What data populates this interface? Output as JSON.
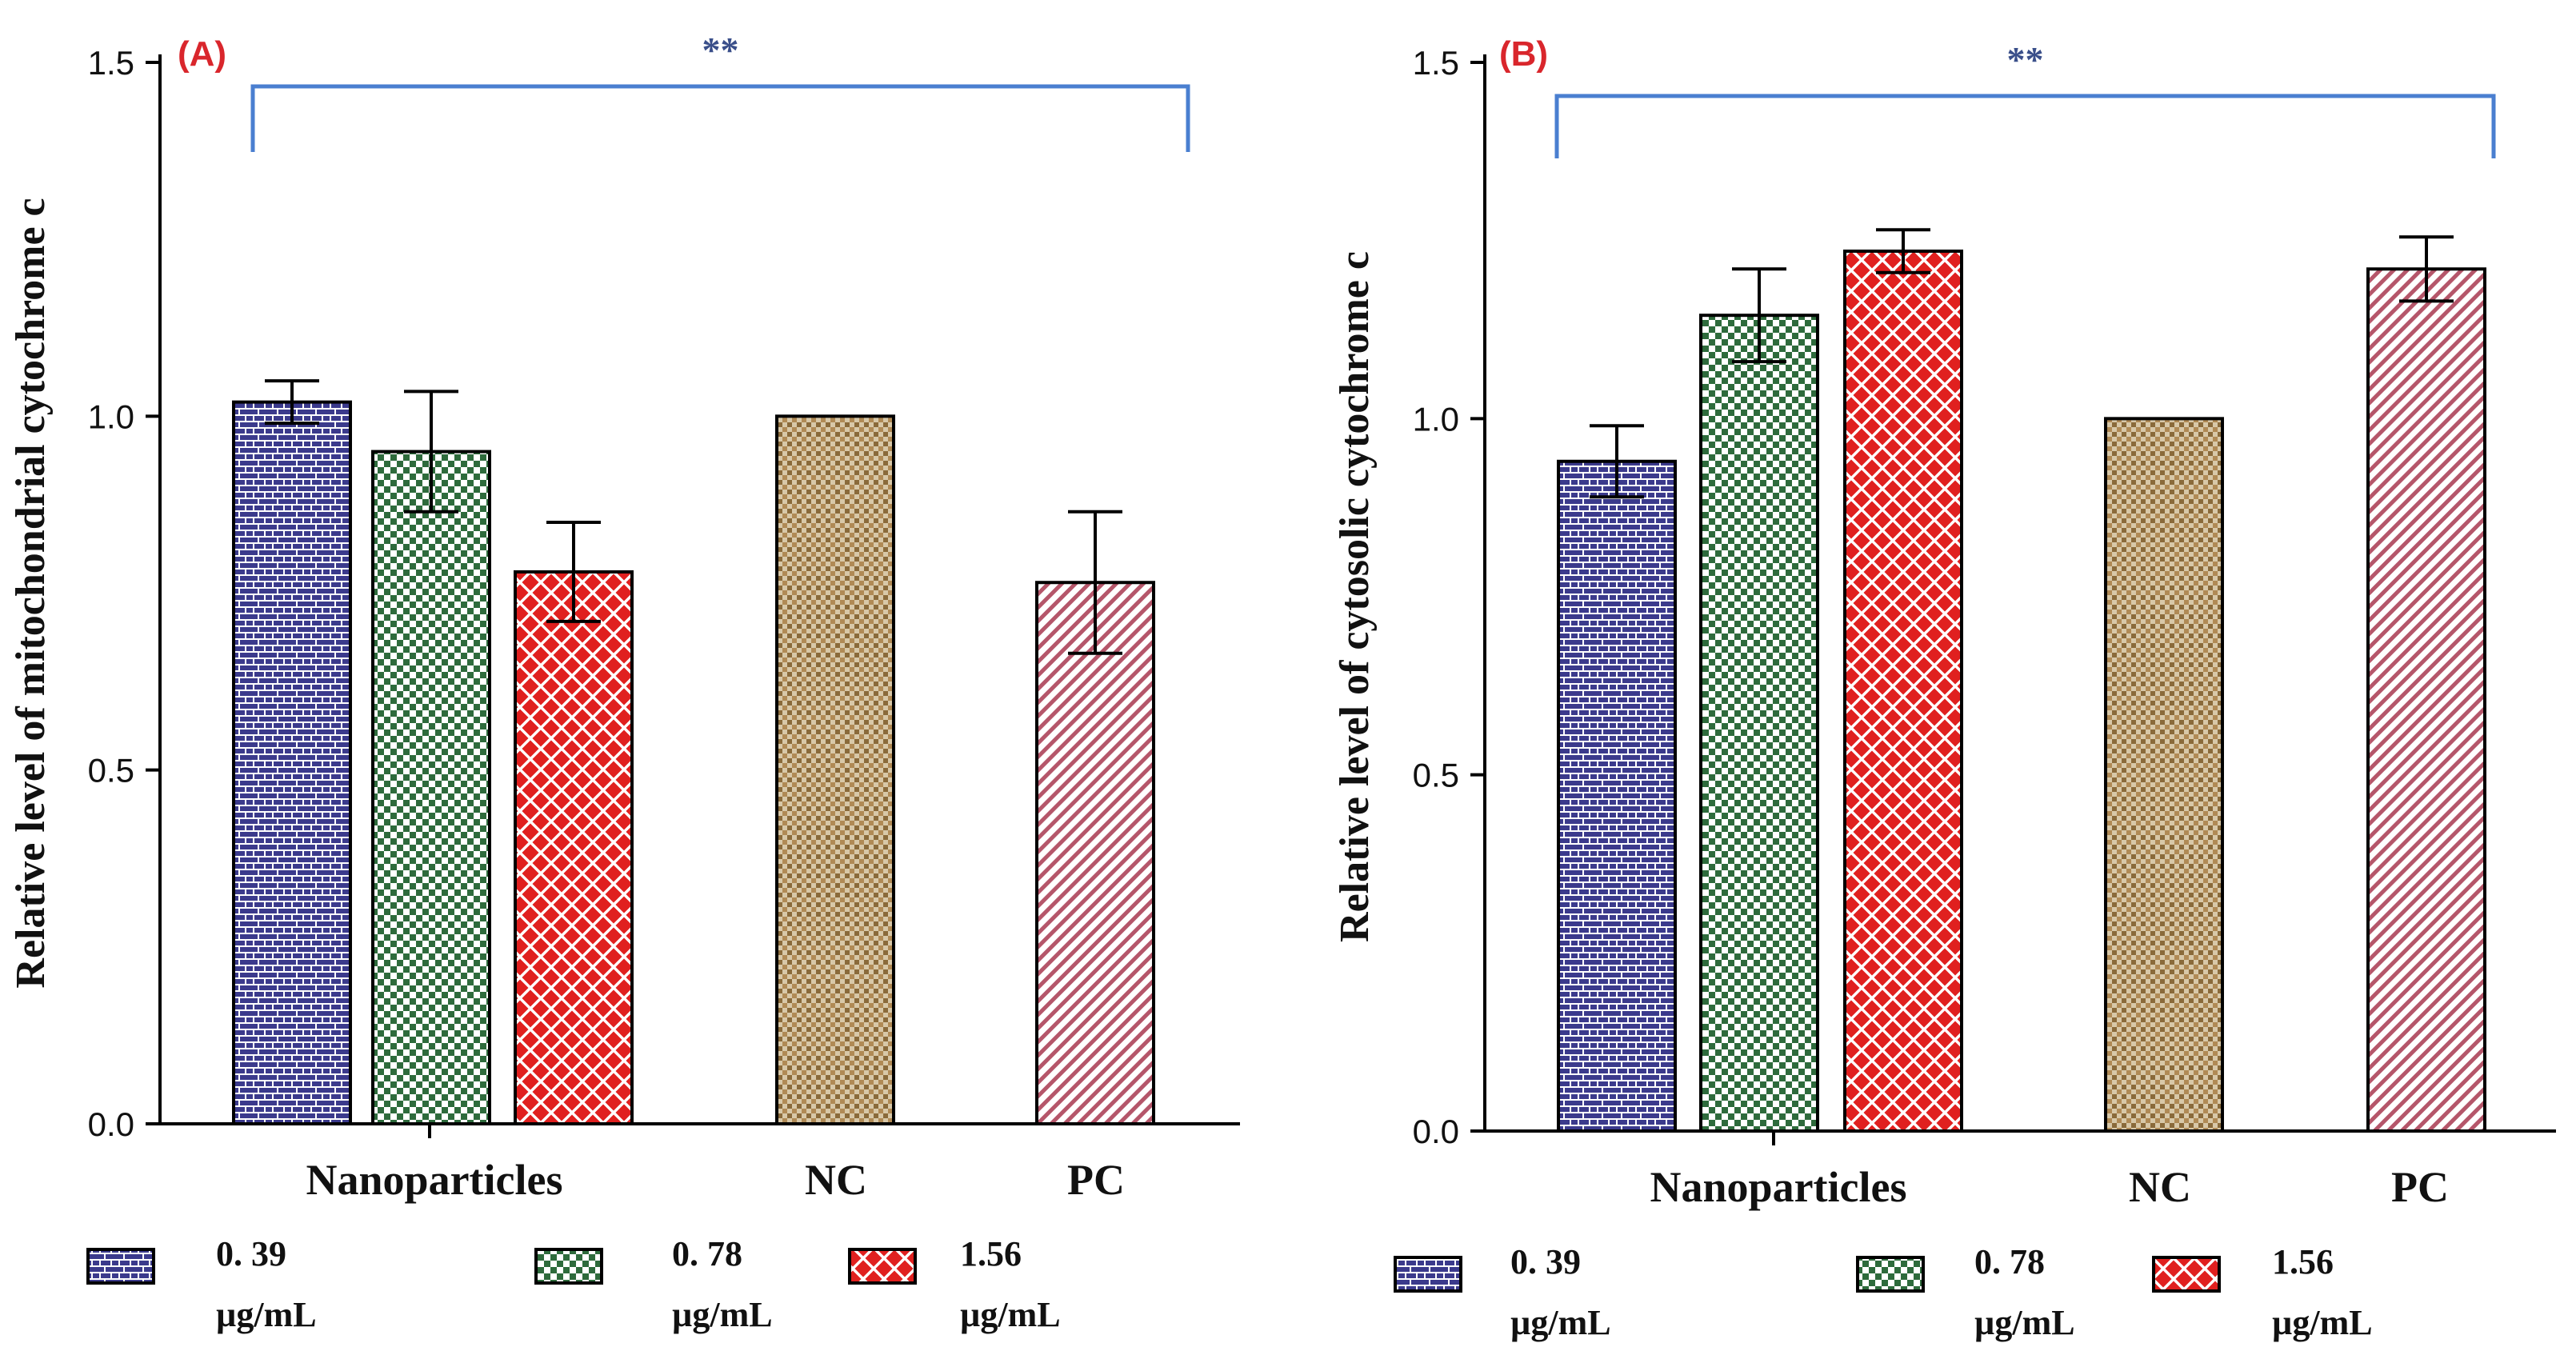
{
  "chart_data": [
    {
      "type": "bar",
      "panel_label": "(A)",
      "ylabel": "Relative level of mitochondrial cytochrome c",
      "ylim": [
        0,
        1.5
      ],
      "yticks": [
        "0.0",
        "0.5",
        "1.0",
        "1.5"
      ],
      "group_labels": [
        "Nanoparticles",
        "NC",
        "PC"
      ],
      "bars": [
        {
          "group": "Nanoparticles",
          "series": "0. 39 µg/mL",
          "value": 1.02,
          "error": 0.03
        },
        {
          "group": "Nanoparticles",
          "series": "0. 78 µg/mL",
          "value": 0.95,
          "error": 0.085
        },
        {
          "group": "Nanoparticles",
          "series": "1.56 µg/mL",
          "value": 0.78,
          "error": 0.07
        },
        {
          "group": "NC",
          "series": "NC",
          "value": 1.0,
          "error": 0
        },
        {
          "group": "PC",
          "series": "PC",
          "value": 0.765,
          "error": 0.1
        }
      ],
      "significance": "**"
    },
    {
      "type": "bar",
      "panel_label": "(B)",
      "ylabel": "Relative level of cytosolic cytochrome c",
      "ylim": [
        0,
        1.5
      ],
      "yticks": [
        "0.0",
        "0.5",
        "1.0",
        "1.5"
      ],
      "group_labels": [
        "Nanoparticles",
        "NC",
        "PC"
      ],
      "bars": [
        {
          "group": "Nanoparticles",
          "series": "0. 39 µg/mL",
          "value": 0.94,
          "error": 0.05
        },
        {
          "group": "Nanoparticles",
          "series": "0. 78 µg/mL",
          "value": 1.145,
          "error": 0.065
        },
        {
          "group": "Nanoparticles",
          "series": "1.56 µg/mL",
          "value": 1.235,
          "error": 0.03
        },
        {
          "group": "NC",
          "series": "NC",
          "value": 1.0,
          "error": 0
        },
        {
          "group": "PC",
          "series": "PC",
          "value": 1.21,
          "error": 0.045
        }
      ],
      "significance": "**"
    }
  ],
  "legend": [
    {
      "line1": "0. 39",
      "line2": "µg/mL",
      "pattern": "brick"
    },
    {
      "line1": "0. 78",
      "line2": "µg/mL",
      "pattern": "checker"
    },
    {
      "line1": "1.56",
      "line2": "µg/mL",
      "pattern": "cross"
    }
  ],
  "colors": {
    "brick": "#3b3a8c",
    "checker": "#2e6b3c",
    "cross": "#e0201f",
    "nc": "#8a6a3a",
    "pc": "#b5566a",
    "bracket": "#4a7fd0",
    "panel_label": "#d9262c"
  }
}
